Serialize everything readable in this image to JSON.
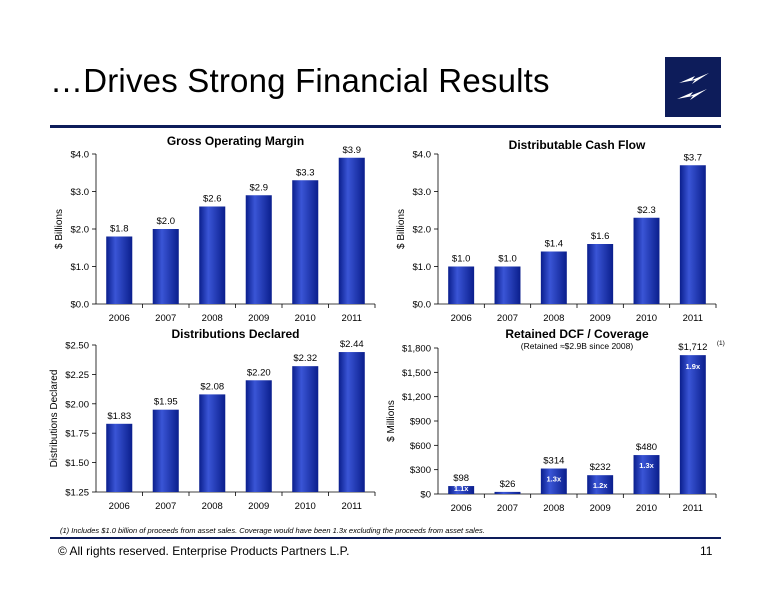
{
  "page": {
    "title": "…Drives Strong Financial Results",
    "logo_icon": "lightning-bolt-logo-icon",
    "footnote": "(1) Includes $1.0 billion of proceeds from asset sales.  Coverage would have been 1.3x excluding the proceeds from asset sales.",
    "footer_text": "©  All rights reserved. Enterprise Products Partners L.P.",
    "page_number": "11"
  },
  "colors": {
    "bar_top": "#3a55d6",
    "bar_bottom": "#0a1e8c",
    "rule": "#0d1c5a"
  },
  "chart_data": [
    {
      "id": "gom",
      "type": "bar",
      "title": "Gross Operating Margin",
      "ylabel": "$ Billions",
      "categories": [
        "2006",
        "2007",
        "2008",
        "2009",
        "2010",
        "2011"
      ],
      "values": [
        1.8,
        2.0,
        2.6,
        2.9,
        3.3,
        3.9
      ],
      "data_labels": [
        "$1.8",
        "$2.0",
        "$2.6",
        "$2.9",
        "$3.3",
        "$3.9"
      ],
      "ylim": [
        0,
        4
      ],
      "yticks": [
        0,
        1,
        2,
        3,
        4
      ],
      "ytick_labels": [
        "$0.0",
        "$1.0",
        "$2.0",
        "$3.0",
        "$4.0"
      ]
    },
    {
      "id": "dcf",
      "type": "bar",
      "title": "Distributable Cash Flow",
      "ylabel": "$ Billions",
      "categories": [
        "2006",
        "2007",
        "2008",
        "2009",
        "2010",
        "2011"
      ],
      "values": [
        1.0,
        1.0,
        1.4,
        1.6,
        2.3,
        3.7
      ],
      "data_labels": [
        "$1.0",
        "$1.0",
        "$1.4",
        "$1.6",
        "$2.3",
        "$3.7"
      ],
      "ylim": [
        0,
        4
      ],
      "yticks": [
        0,
        1,
        2,
        3,
        4
      ],
      "ytick_labels": [
        "$0.0",
        "$1.0",
        "$2.0",
        "$3.0",
        "$4.0"
      ]
    },
    {
      "id": "dist",
      "type": "bar",
      "title": "Distributions Declared",
      "ylabel": "Distributions Declared",
      "categories": [
        "2006",
        "2007",
        "2008",
        "2009",
        "2010",
        "2011"
      ],
      "values": [
        1.83,
        1.95,
        2.08,
        2.2,
        2.32,
        2.44
      ],
      "data_labels": [
        "$1.83",
        "$1.95",
        "$2.08",
        "$2.20",
        "$2.32",
        "$2.44"
      ],
      "ylim": [
        1.25,
        2.5
      ],
      "yticks": [
        1.25,
        1.5,
        1.75,
        2.0,
        2.25,
        2.5
      ],
      "ytick_labels": [
        "$1.25",
        "$1.50",
        "$1.75",
        "$2.00",
        "$2.25",
        "$2.50"
      ]
    },
    {
      "id": "ret",
      "type": "bar",
      "title": "Retained DCF / Coverage",
      "subtitle": "(Retained ≈$2.9B since 2008)",
      "ylabel": "$ Millions",
      "categories": [
        "2006",
        "2007",
        "2008",
        "2009",
        "2010",
        "2011"
      ],
      "values": [
        98,
        26,
        314,
        232,
        480,
        1712
      ],
      "data_labels": [
        "$98",
        "$26",
        "$314",
        "$232",
        "$480",
        "$1,712"
      ],
      "label_superscripts": [
        "",
        "",
        "",
        "",
        "",
        "(1)"
      ],
      "coverage": [
        "1.1x",
        "",
        "1.3x",
        "1.2x",
        "1.3x",
        "1.9x"
      ],
      "ylim": [
        0,
        1800
      ],
      "yticks": [
        0,
        300,
        600,
        900,
        1200,
        1500,
        1800
      ],
      "ytick_labels": [
        "$0",
        "$300",
        "$600",
        "$900",
        "$1,200",
        "$1,500",
        "$1,800"
      ]
    }
  ]
}
